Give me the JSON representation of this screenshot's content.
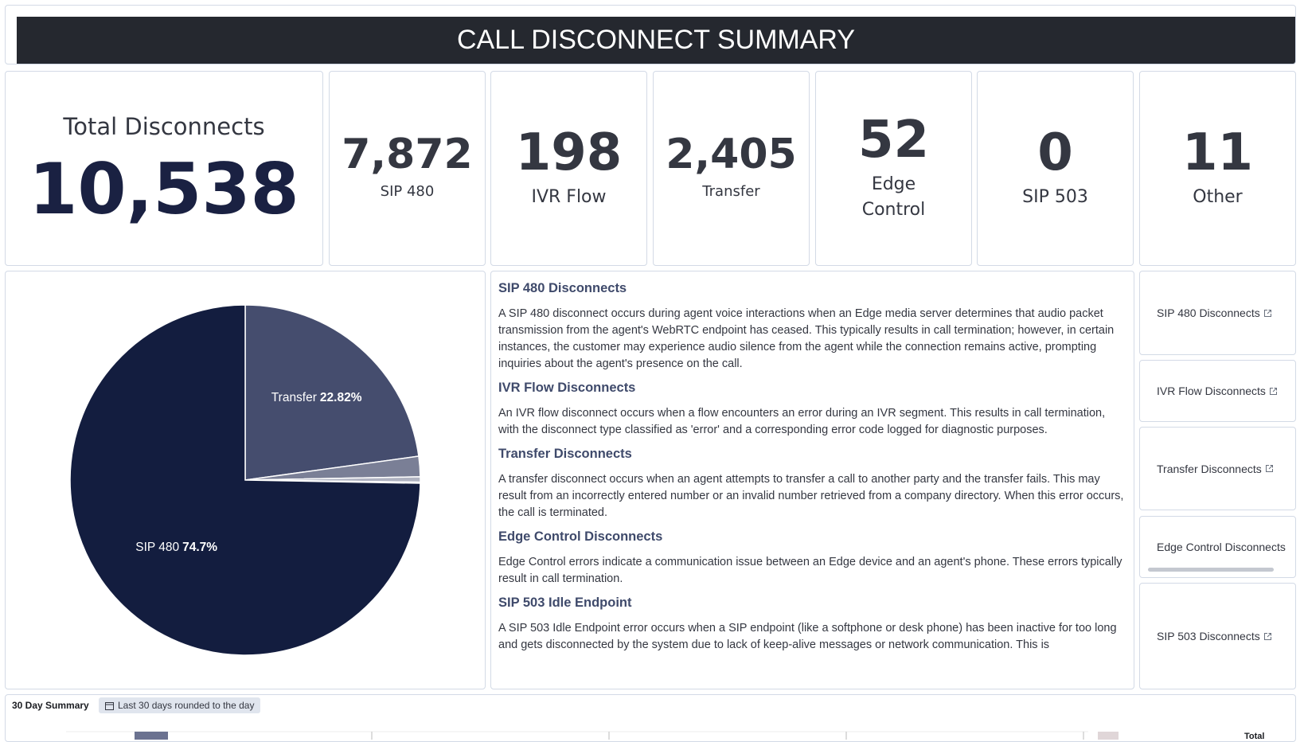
{
  "header": {
    "title": "CALL DISCONNECT SUMMARY"
  },
  "total": {
    "label": "Total Disconnects",
    "value": "10,538"
  },
  "kpis": [
    {
      "value": "7,872",
      "label": "SIP 480"
    },
    {
      "value": "198",
      "label": "IVR Flow"
    },
    {
      "value": "2,405",
      "label": "Transfer"
    },
    {
      "value": "52",
      "label": "Edge Control"
    },
    {
      "value": "0",
      "label": "SIP 503"
    },
    {
      "value": "11",
      "label": "Other"
    }
  ],
  "chart_data": {
    "type": "pie",
    "categories": [
      "Transfer",
      null,
      null,
      null,
      "SIP 480"
    ],
    "values": [
      22.82,
      1.88,
      0.49,
      0.1,
      74.7
    ],
    "value_labels": [
      "22.82%",
      null,
      null,
      null,
      "74.7%"
    ],
    "colors": [
      "#454d6e",
      "#7a7f96",
      "#b0b3c1",
      "#d6d8e0",
      "#131d3f"
    ]
  },
  "descriptions": [
    {
      "heading": "SIP 480 Disconnects",
      "text": "A SIP 480 disconnect occurs during agent voice interactions when an Edge media server determines that audio packet transmission from the agent's WebRTC endpoint has ceased. This typically results in call termination; however, in certain instances, the customer may experience audio silence from the agent while the connection remains active, prompting inquiries about the agent's presence on the call."
    },
    {
      "heading": "IVR Flow Disconnects",
      "text": "An IVR flow disconnect occurs when a flow encounters an error during an IVR segment. This results in call termination, with the disconnect type classified as 'error' and a corresponding error code logged for diagnostic purposes."
    },
    {
      "heading": "Transfer Disconnects",
      "text": "A transfer disconnect occurs when an agent attempts to transfer a call to another party and the transfer fails. This may result from an incorrectly entered number or an invalid number retrieved from a company directory. When this error occurs, the call is terminated."
    },
    {
      "heading": "Edge Control Disconnects",
      "text": "Edge Control errors indicate a communication issue between an Edge device and an agent's phone. These errors typically result in call termination."
    },
    {
      "heading": "SIP 503 Idle Endpoint",
      "text": "A SIP 503 Idle Endpoint error occurs when a SIP endpoint (like a softphone or desk phone) has been inactive for too long and gets disconnected by the system due to lack of keep-alive messages or network communication. This is"
    }
  ],
  "links": [
    "SIP 480 Disconnects",
    "IVR Flow Disconnects",
    "Transfer Disconnects",
    "Edge Control Disconnects",
    "SIP 503 Disconnects"
  ],
  "footer": {
    "title": "30 Day Summary",
    "badge": "Last 30 days rounded to the day",
    "legend_title": "Total"
  }
}
